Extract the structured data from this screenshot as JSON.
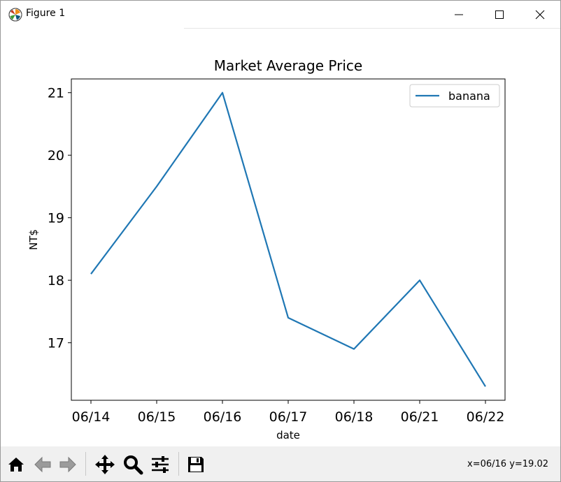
{
  "window": {
    "title": "Figure 1"
  },
  "chart_data": {
    "type": "line",
    "title": "Market Average Price",
    "xlabel": "date",
    "ylabel": "NT$",
    "categories": [
      "06/14",
      "06/15",
      "06/16",
      "06/17",
      "06/18",
      "06/21",
      "06/22"
    ],
    "series": [
      {
        "name": "banana",
        "color": "#1f77b4",
        "values": [
          18.1,
          19.5,
          21.0,
          17.4,
          16.9,
          18.0,
          16.3
        ]
      }
    ],
    "yticks": [
      "17",
      "18",
      "19",
      "20",
      "21"
    ],
    "ylim": [
      16.08,
      21.22
    ],
    "grid": false,
    "legend": "top-right"
  },
  "toolbar": {
    "icons": [
      "home-icon",
      "back-arrow-icon",
      "forward-arrow-icon",
      "pan-icon",
      "zoom-icon",
      "configure-subplots-icon",
      "save-icon"
    ],
    "coords_text": "x=06/16 y=19.02"
  }
}
